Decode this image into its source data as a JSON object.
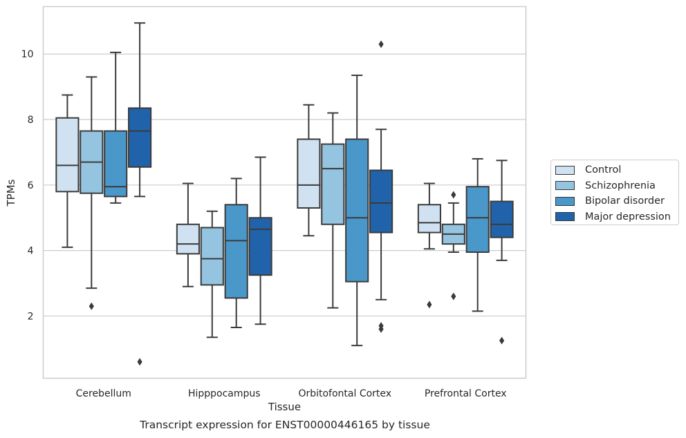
{
  "caption": "Transcript expression for ENST00000446165 by tissue",
  "chart_data": {
    "type": "boxplot",
    "title": "",
    "xlabel": "Tissue",
    "ylabel": "TPMs",
    "ylim": [
      0.1,
      11.45
    ],
    "yticks": [
      2,
      4,
      6,
      8,
      10
    ],
    "grid": "horizontal",
    "legend_position": "right",
    "categories": [
      "Cerebellum",
      "Hipppocampus",
      "Orbitofontal Cortex",
      "Prefrontal Cortex"
    ],
    "series": [
      {
        "name": "Control",
        "color": "#d0e1f2",
        "boxes": [
          {
            "whisker_low": 4.1,
            "q1": 5.8,
            "median": 6.6,
            "q3": 8.05,
            "whisker_high": 8.75,
            "outliers": []
          },
          {
            "whisker_low": 2.9,
            "q1": 3.9,
            "median": 4.2,
            "q3": 4.8,
            "whisker_high": 6.05,
            "outliers": []
          },
          {
            "whisker_low": 4.45,
            "q1": 5.3,
            "median": 6.0,
            "q3": 7.4,
            "whisker_high": 8.45,
            "outliers": []
          },
          {
            "whisker_low": 4.05,
            "q1": 4.55,
            "median": 4.85,
            "q3": 5.4,
            "whisker_high": 6.05,
            "outliers": [
              2.35
            ]
          }
        ]
      },
      {
        "name": "Schizophrenia",
        "color": "#94c4df",
        "boxes": [
          {
            "whisker_low": 2.85,
            "q1": 5.75,
            "median": 6.7,
            "q3": 7.65,
            "whisker_high": 9.3,
            "outliers": [
              2.3
            ]
          },
          {
            "whisker_low": 1.35,
            "q1": 2.95,
            "median": 3.75,
            "q3": 4.7,
            "whisker_high": 5.2,
            "outliers": []
          },
          {
            "whisker_low": 2.25,
            "q1": 4.8,
            "median": 6.5,
            "q3": 7.25,
            "whisker_high": 8.2,
            "outliers": []
          },
          {
            "whisker_low": 3.95,
            "q1": 4.2,
            "median": 4.5,
            "q3": 4.8,
            "whisker_high": 5.45,
            "outliers": [
              5.7,
              2.6
            ]
          }
        ]
      },
      {
        "name": "Bipolar disorder",
        "color": "#4a98c9",
        "boxes": [
          {
            "whisker_low": 5.45,
            "q1": 5.65,
            "median": 5.95,
            "q3": 7.65,
            "whisker_high": 10.05,
            "outliers": []
          },
          {
            "whisker_low": 1.65,
            "q1": 2.55,
            "median": 4.3,
            "q3": 5.4,
            "whisker_high": 6.2,
            "outliers": []
          },
          {
            "whisker_low": 1.1,
            "q1": 3.05,
            "median": 5.0,
            "q3": 7.4,
            "whisker_high": 9.35,
            "outliers": []
          },
          {
            "whisker_low": 2.15,
            "q1": 3.95,
            "median": 5.0,
            "q3": 5.95,
            "whisker_high": 6.8,
            "outliers": []
          }
        ]
      },
      {
        "name": "Major depression",
        "color": "#2163aa",
        "boxes": [
          {
            "whisker_low": 5.65,
            "q1": 6.55,
            "median": 7.65,
            "q3": 8.35,
            "whisker_high": 10.95,
            "outliers": [
              0.6
            ]
          },
          {
            "whisker_low": 1.75,
            "q1": 3.25,
            "median": 4.65,
            "q3": 5.0,
            "whisker_high": 6.85,
            "outliers": []
          },
          {
            "whisker_low": 2.5,
            "q1": 4.55,
            "median": 5.45,
            "q3": 6.45,
            "whisker_high": 7.7,
            "outliers": [
              10.3,
              1.7,
              1.6
            ]
          },
          {
            "whisker_low": 3.7,
            "q1": 4.4,
            "median": 4.8,
            "q3": 5.5,
            "whisker_high": 6.75,
            "outliers": [
              1.25
            ]
          }
        ]
      }
    ]
  }
}
